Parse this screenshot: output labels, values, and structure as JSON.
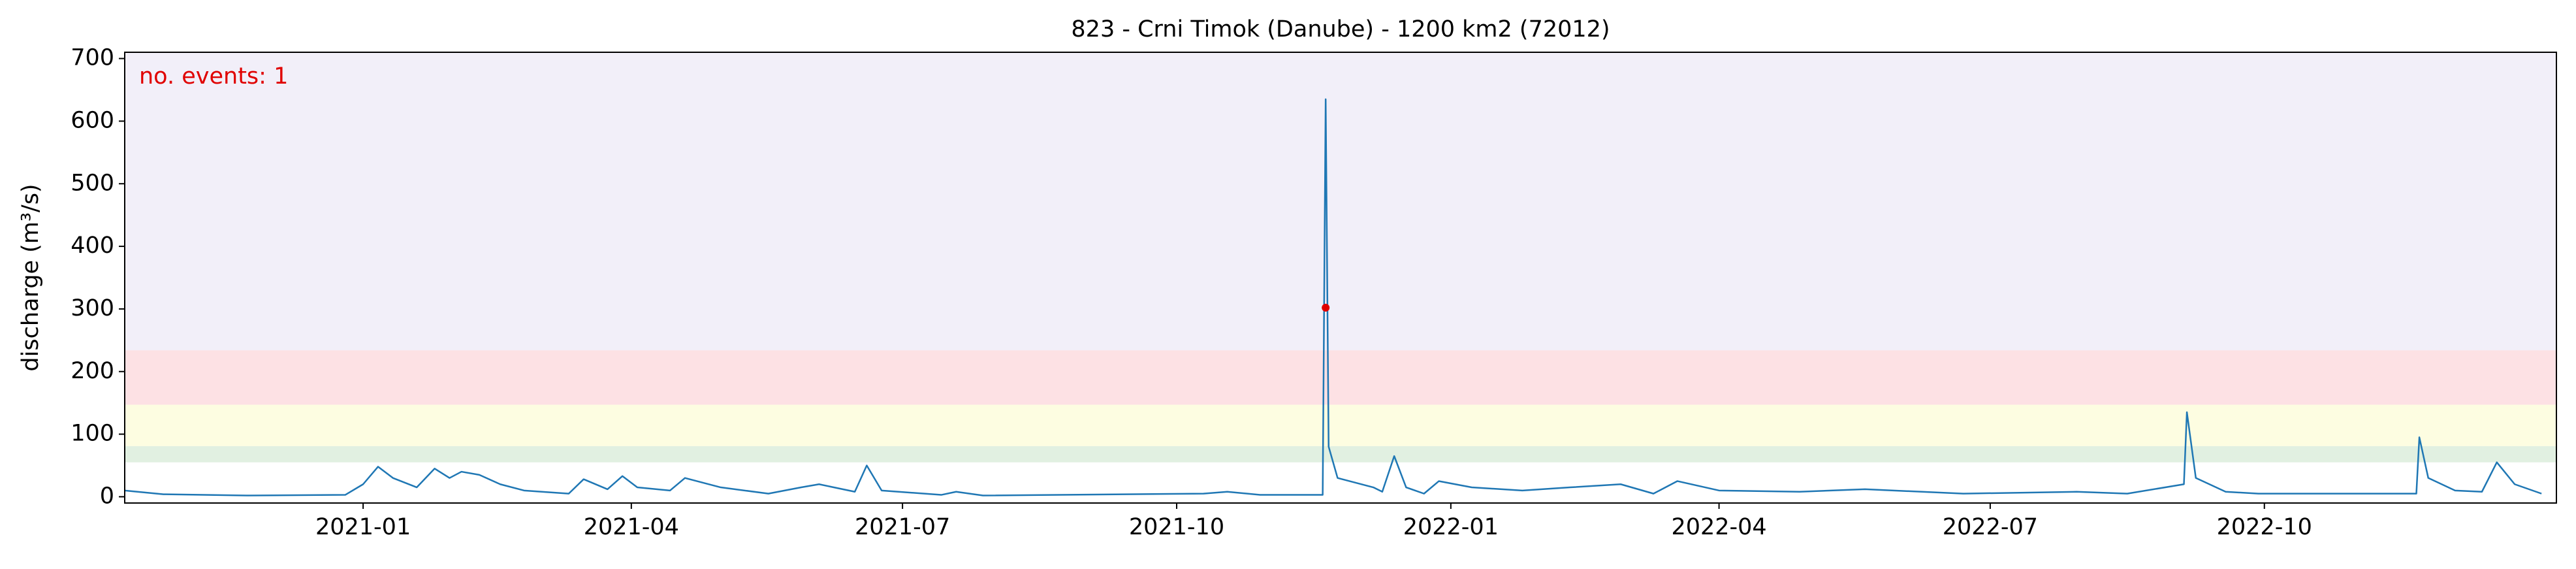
{
  "chart_data": {
    "type": "line",
    "title": "823 - Crni Timok (Danube) - 1200 km2 (72012)",
    "y_label": "discharge (m³/s)",
    "annotation": "no. events: 1",
    "annotation_color": "#e00000",
    "xlim": [
      "2020-10-13",
      "2023-01-07"
    ],
    "ylim": [
      -10,
      710
    ],
    "yticks": [
      0,
      100,
      200,
      300,
      400,
      500,
      600,
      700
    ],
    "xticks": [
      {
        "value": "2021-01-01",
        "label": "2021-01"
      },
      {
        "value": "2021-04-01",
        "label": "2021-04"
      },
      {
        "value": "2021-07-01",
        "label": "2021-07"
      },
      {
        "value": "2021-10-01",
        "label": "2021-10"
      },
      {
        "value": "2022-01-01",
        "label": "2022-01"
      },
      {
        "value": "2022-04-01",
        "label": "2022-04"
      },
      {
        "value": "2022-07-01",
        "label": "2022-07"
      },
      {
        "value": "2022-10-01",
        "label": "2022-10"
      }
    ],
    "bands": [
      {
        "ymin": 55,
        "ymax": 81,
        "color": "#e1f0e1"
      },
      {
        "ymin": 81,
        "ymax": 147,
        "color": "#fdfde1"
      },
      {
        "ymin": 147,
        "ymax": 234,
        "color": "#fde1e4"
      },
      {
        "ymin": 234,
        "ymax": 710,
        "color": "#f2eff9"
      }
    ],
    "x": [
      "2020-10-13",
      "2020-10-26",
      "2020-11-23",
      "2020-12-26",
      "2021-01-01",
      "2021-01-06",
      "2021-01-11",
      "2021-01-19",
      "2021-01-25",
      "2021-01-30",
      "2021-02-03",
      "2021-02-09",
      "2021-02-16",
      "2021-02-24",
      "2021-03-11",
      "2021-03-16",
      "2021-03-24",
      "2021-03-29",
      "2021-04-03",
      "2021-04-14",
      "2021-04-19",
      "2021-05-01",
      "2021-05-17",
      "2021-05-28",
      "2021-06-03",
      "2021-06-15",
      "2021-06-19",
      "2021-06-24",
      "2021-07-14",
      "2021-07-19",
      "2021-07-28",
      "2021-10-10",
      "2021-10-18",
      "2021-10-29",
      "2021-11-19",
      "2021-11-20",
      "2021-11-21",
      "2021-11-24",
      "2021-12-06",
      "2021-12-09",
      "2021-12-13",
      "2021-12-17",
      "2021-12-23",
      "2021-12-28",
      "2022-01-08",
      "2022-01-25",
      "2022-02-10",
      "2022-02-27",
      "2022-03-10",
      "2022-03-18",
      "2022-04-01",
      "2022-04-28",
      "2022-05-20",
      "2022-06-22",
      "2022-07-30",
      "2022-08-16",
      "2022-09-04",
      "2022-09-05",
      "2022-09-08",
      "2022-09-18",
      "2022-09-29",
      "2022-11-21",
      "2022-11-22",
      "2022-11-25",
      "2022-12-04",
      "2022-12-13",
      "2022-12-18",
      "2022-12-24",
      "2023-01-02"
    ],
    "series": [
      {
        "name": "discharge",
        "color": "#1f77b4",
        "values": [
          10,
          4,
          2,
          3,
          20,
          48,
          30,
          15,
          45,
          30,
          40,
          35,
          20,
          10,
          5,
          28,
          12,
          33,
          15,
          10,
          30,
          15,
          5,
          15,
          20,
          8,
          50,
          10,
          3,
          8,
          2,
          5,
          8,
          3,
          3,
          635,
          80,
          30,
          15,
          8,
          65,
          15,
          5,
          25,
          15,
          10,
          15,
          20,
          5,
          25,
          10,
          8,
          12,
          5,
          8,
          5,
          20,
          135,
          30,
          8,
          5,
          5,
          95,
          30,
          10,
          8,
          55,
          20,
          5
        ]
      }
    ],
    "events": {
      "x": [
        "2021-11-20"
      ],
      "values": [
        302
      ],
      "color": "#e00000"
    }
  }
}
